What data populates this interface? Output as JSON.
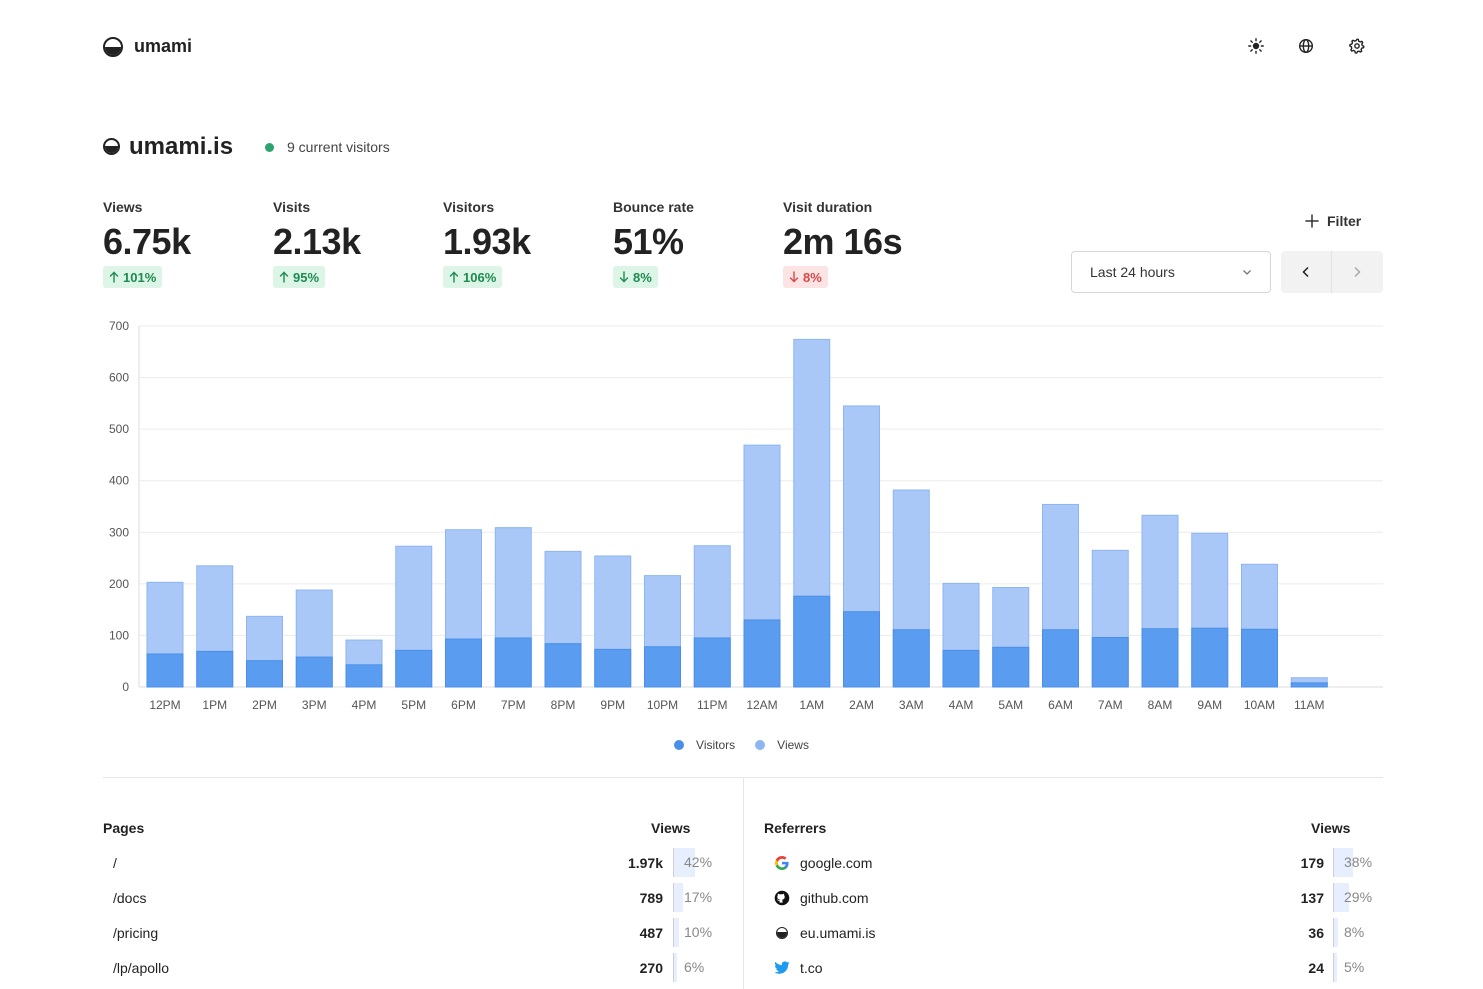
{
  "app": {
    "name": "umami"
  },
  "icons": {
    "theme": "sun-icon",
    "language": "globe-icon",
    "settings": "gear-icon"
  },
  "site": {
    "name": "umami.is",
    "live_text": "9 current visitors",
    "live_color": "#2ca46d"
  },
  "metrics": [
    {
      "label": "Views",
      "value": "6.75k",
      "change": "101%",
      "direction": "up",
      "tone": "good"
    },
    {
      "label": "Visits",
      "value": "2.13k",
      "change": "95%",
      "direction": "up",
      "tone": "good"
    },
    {
      "label": "Visitors",
      "value": "1.93k",
      "change": "106%",
      "direction": "up",
      "tone": "good"
    },
    {
      "label": "Bounce rate",
      "value": "51%",
      "change": "8%",
      "direction": "down",
      "tone": "good"
    },
    {
      "label": "Visit duration",
      "value": "2m 16s",
      "change": "8%",
      "direction": "down",
      "tone": "bad"
    }
  ],
  "controls": {
    "filter_label": "Filter",
    "date_range": "Last 24 hours"
  },
  "chart_data": {
    "type": "bar",
    "stacked": "overlay",
    "categories": [
      "12PM",
      "1PM",
      "2PM",
      "3PM",
      "4PM",
      "5PM",
      "6PM",
      "7PM",
      "8PM",
      "9PM",
      "10PM",
      "11PM",
      "12AM",
      "1AM",
      "2AM",
      "3AM",
      "4AM",
      "5AM",
      "6AM",
      "7AM",
      "8AM",
      "9AM",
      "10AM",
      "11AM"
    ],
    "series": [
      {
        "name": "Views",
        "color": "#a9c8f7",
        "values": [
          203,
          235,
          137,
          188,
          91,
          273,
          305,
          309,
          263,
          254,
          216,
          274,
          469,
          674,
          545,
          382,
          201,
          193,
          354,
          265,
          333,
          298,
          238,
          18
        ]
      },
      {
        "name": "Visitors",
        "color": "#5a9df0",
        "values": [
          64,
          69,
          51,
          58,
          43,
          71,
          93,
          95,
          84,
          73,
          78,
          95,
          130,
          176,
          146,
          111,
          71,
          77,
          111,
          96,
          113,
          114,
          112,
          8
        ]
      }
    ],
    "ylim": [
      0,
      700
    ],
    "yticks": [
      0,
      100,
      200,
      300,
      400,
      500,
      600,
      700
    ],
    "grid": true,
    "legend": "bottom-center",
    "legend_order": [
      "Visitors",
      "Views"
    ]
  },
  "pages": {
    "title": "Pages",
    "metric": "Views",
    "rows": [
      {
        "name": "/",
        "value": "1.97k",
        "pct": "42%",
        "fraction": 0.42
      },
      {
        "name": "/docs",
        "value": "789",
        "pct": "17%",
        "fraction": 0.17
      },
      {
        "name": "/pricing",
        "value": "487",
        "pct": "10%",
        "fraction": 0.1
      },
      {
        "name": "/lp/apollo",
        "value": "270",
        "pct": "6%",
        "fraction": 0.06
      }
    ]
  },
  "referrers": {
    "title": "Referrers",
    "metric": "Views",
    "rows": [
      {
        "name": "google.com",
        "icon": "google-icon",
        "value": "179",
        "pct": "38%",
        "fraction": 0.38
      },
      {
        "name": "github.com",
        "icon": "github-icon",
        "value": "137",
        "pct": "29%",
        "fraction": 0.29
      },
      {
        "name": "eu.umami.is",
        "icon": "umami-icon",
        "value": "36",
        "pct": "8%",
        "fraction": 0.08
      },
      {
        "name": "t.co",
        "icon": "twitter-icon",
        "value": "24",
        "pct": "5%",
        "fraction": 0.05
      }
    ]
  }
}
